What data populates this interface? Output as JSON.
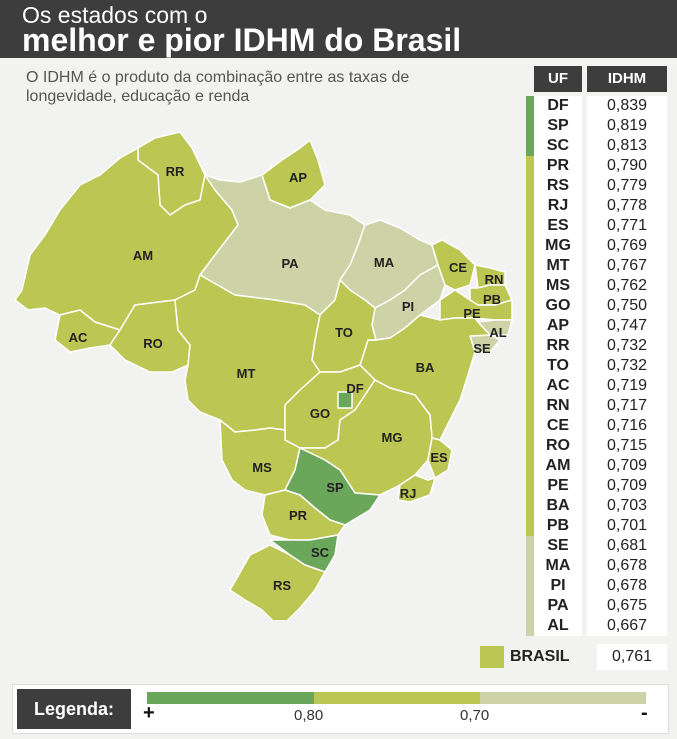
{
  "header": {
    "title_line1": "Os estados com o",
    "title_line2": "melhor e pior IDHM do Brasil"
  },
  "subtitle": "O IDHM é o produto da combinação entre as taxas de longevidade, educação e renda",
  "colors": {
    "high": "#6aa75a",
    "mid": "#bcc653",
    "low": "#cdd3a7"
  },
  "table": {
    "headers": {
      "uf": "UF",
      "idhm": "IDHM"
    },
    "rows": [
      {
        "uf": "DF",
        "value": "0,839",
        "tier": "high"
      },
      {
        "uf": "SP",
        "value": "0,819",
        "tier": "high"
      },
      {
        "uf": "SC",
        "value": "0,813",
        "tier": "high"
      },
      {
        "uf": "PR",
        "value": "0,790",
        "tier": "mid"
      },
      {
        "uf": "RS",
        "value": "0,779",
        "tier": "mid"
      },
      {
        "uf": "RJ",
        "value": "0,778",
        "tier": "mid"
      },
      {
        "uf": "ES",
        "value": "0,771",
        "tier": "mid"
      },
      {
        "uf": "MG",
        "value": "0,769",
        "tier": "mid"
      },
      {
        "uf": "MT",
        "value": "0,767",
        "tier": "mid"
      },
      {
        "uf": "MS",
        "value": "0,762",
        "tier": "mid"
      },
      {
        "uf": "GO",
        "value": "0,750",
        "tier": "mid"
      },
      {
        "uf": "AP",
        "value": "0,747",
        "tier": "mid"
      },
      {
        "uf": "RR",
        "value": "0,732",
        "tier": "mid"
      },
      {
        "uf": "TO",
        "value": "0,732",
        "tier": "mid"
      },
      {
        "uf": "AC",
        "value": "0,719",
        "tier": "mid"
      },
      {
        "uf": "RN",
        "value": "0,717",
        "tier": "mid"
      },
      {
        "uf": "CE",
        "value": "0,716",
        "tier": "mid"
      },
      {
        "uf": "RO",
        "value": "0,715",
        "tier": "mid"
      },
      {
        "uf": "AM",
        "value": "0,709",
        "tier": "mid"
      },
      {
        "uf": "PE",
        "value": "0,709",
        "tier": "mid"
      },
      {
        "uf": "BA",
        "value": "0,703",
        "tier": "mid"
      },
      {
        "uf": "PB",
        "value": "0,701",
        "tier": "mid"
      },
      {
        "uf": "SE",
        "value": "0,681",
        "tier": "low"
      },
      {
        "uf": "MA",
        "value": "0,678",
        "tier": "low"
      },
      {
        "uf": "PI",
        "value": "0,678",
        "tier": "low"
      },
      {
        "uf": "PA",
        "value": "0,675",
        "tier": "low"
      },
      {
        "uf": "AL",
        "value": "0,667",
        "tier": "low"
      }
    ]
  },
  "brasil": {
    "label": "BRASIL",
    "value": "0,761"
  },
  "legend": {
    "label": "Legenda:",
    "plus": "+",
    "minus": "-",
    "tick1": "0,80",
    "tick2": "0,70"
  }
}
